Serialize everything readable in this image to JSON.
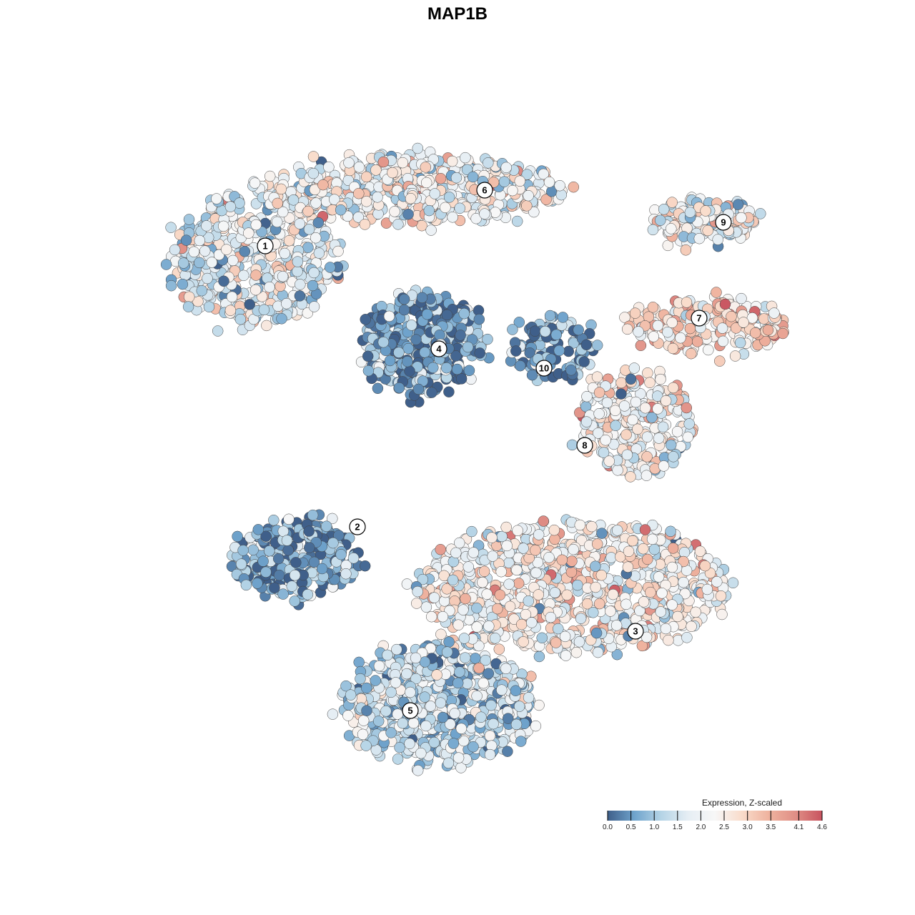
{
  "title": "MAP1B",
  "chart_data": {
    "type": "scatter",
    "title": "MAP1B",
    "xlabel": "",
    "ylabel": "",
    "grid": false,
    "legend_placement": "bottom-right",
    "colorbar": {
      "title": "Expression, Z-scaled",
      "min": 0.0,
      "max": 4.6,
      "ticks": [
        0.0,
        0.5,
        1.0,
        1.5,
        2.0,
        2.5,
        3.0,
        3.5,
        4.1,
        4.6
      ],
      "tick_labels": [
        "0.0",
        "0.5",
        "1.0",
        "1.5",
        "2.0",
        "2.5",
        "3.0",
        "3.5",
        "4.1",
        "4.6"
      ],
      "colors": [
        "#3f5f8a",
        "#6fa3cc",
        "#b5d4e6",
        "#e6eef4",
        "#f7f7f7",
        "#f9dccb",
        "#efb39f",
        "#e08f86",
        "#c8535f"
      ]
    },
    "clusters": [
      {
        "label": "1",
        "mean_expression": 1.8
      },
      {
        "label": "2",
        "mean_expression": 0.6
      },
      {
        "label": "3",
        "mean_expression": 2.3
      },
      {
        "label": "4",
        "mean_expression": 0.6
      },
      {
        "label": "5",
        "mean_expression": 1.4
      },
      {
        "label": "6",
        "mean_expression": 2.1
      },
      {
        "label": "7",
        "mean_expression": 2.8
      },
      {
        "label": "8",
        "mean_expression": 2.3
      },
      {
        "label": "9",
        "mean_expression": 2.1
      },
      {
        "label": "10",
        "mean_expression": 0.5
      }
    ]
  }
}
